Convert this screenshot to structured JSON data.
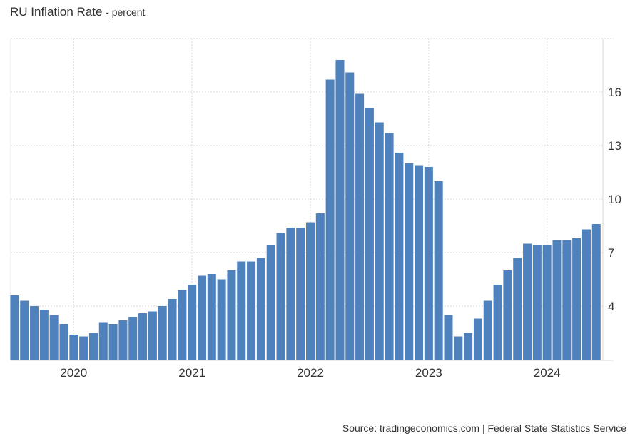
{
  "header": {
    "title": "RU Inflation Rate",
    "subtitle": "- percent"
  },
  "footer": {
    "source": "Source: tradingeconomics.com | Federal State Statistics Service"
  },
  "colors": {
    "bar": "#4f81bd",
    "grid": "#d9d9d9",
    "axis": "#e6e6e6",
    "text": "#333333"
  },
  "chart_data": {
    "type": "bar",
    "title": "RU Inflation Rate - percent",
    "xlabel": "",
    "ylabel": "",
    "ylim": [
      1,
      19
    ],
    "yticks": [
      4,
      7,
      10,
      13,
      16
    ],
    "xticks": [
      "2020",
      "2021",
      "2022",
      "2023",
      "2024"
    ],
    "xtick_month_index": [
      6,
      18,
      30,
      42,
      54
    ],
    "grid": true,
    "legend": null,
    "y_axis_position": "right",
    "categories": [
      "2019-07",
      "2019-08",
      "2019-09",
      "2019-10",
      "2019-11",
      "2019-12",
      "2020-01",
      "2020-02",
      "2020-03",
      "2020-04",
      "2020-05",
      "2020-06",
      "2020-07",
      "2020-08",
      "2020-09",
      "2020-10",
      "2020-11",
      "2020-12",
      "2021-01",
      "2021-02",
      "2021-03",
      "2021-04",
      "2021-05",
      "2021-06",
      "2021-07",
      "2021-08",
      "2021-09",
      "2021-10",
      "2021-11",
      "2021-12",
      "2022-01",
      "2022-02",
      "2022-03",
      "2022-04",
      "2022-05",
      "2022-06",
      "2022-07",
      "2022-08",
      "2022-09",
      "2022-10",
      "2022-11",
      "2022-12",
      "2023-01",
      "2023-02",
      "2023-03",
      "2023-04",
      "2023-05",
      "2023-06",
      "2023-07",
      "2023-08",
      "2023-09",
      "2023-10",
      "2023-11",
      "2023-12",
      "2024-01",
      "2024-02",
      "2024-03",
      "2024-04",
      "2024-05",
      "2024-06"
    ],
    "values": [
      4.6,
      4.3,
      4.0,
      3.8,
      3.5,
      3.0,
      2.4,
      2.3,
      2.5,
      3.1,
      3.0,
      3.2,
      3.4,
      3.6,
      3.7,
      4.0,
      4.4,
      4.9,
      5.2,
      5.7,
      5.8,
      5.5,
      6.0,
      6.5,
      6.5,
      6.7,
      7.4,
      8.1,
      8.4,
      8.4,
      8.7,
      9.2,
      16.7,
      17.8,
      17.1,
      15.9,
      15.1,
      14.3,
      13.7,
      12.6,
      12.0,
      11.9,
      11.8,
      11.0,
      3.5,
      2.3,
      2.5,
      3.3,
      4.3,
      5.2,
      6.0,
      6.7,
      7.5,
      7.4,
      7.4,
      7.7,
      7.7,
      7.8,
      8.3,
      8.6
    ]
  }
}
